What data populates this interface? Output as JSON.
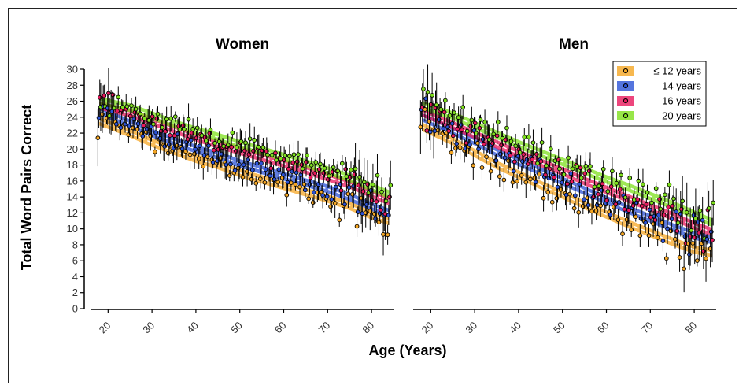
{
  "chart_data": {
    "type": "scatter",
    "ylabel": "Total Word Pairs Correct",
    "xlabel": "Age (Years)",
    "xlim": [
      16,
      85
    ],
    "ylim": [
      0,
      30
    ],
    "x_ticks": [
      20,
      30,
      40,
      50,
      60,
      70,
      80
    ],
    "y_ticks": [
      0,
      2,
      4,
      6,
      8,
      10,
      12,
      14,
      16,
      18,
      20,
      22,
      24,
      26,
      28,
      30
    ],
    "grid": false,
    "legend_position": "top-right of Men panel",
    "legend": [
      {
        "label": "≤ 12 years",
        "color": "#f5a623"
      },
      {
        "label": "14 years",
        "color": "#2b52d6"
      },
      {
        "label": "16 years",
        "color": "#e8185c"
      },
      {
        "label": "20 years",
        "color": "#7ee01c"
      }
    ],
    "panels": [
      {
        "title": "Women",
        "series": [
          {
            "name": "≤ 12 years",
            "color": "#f5a623",
            "x": [
              18,
              25,
              30,
              35,
              40,
              45,
              50,
              55,
              60,
              65,
              70,
              75,
              80,
              84
            ],
            "y": [
              23.5,
              22.0,
              20.8,
              19.8,
              18.8,
              18.0,
              17.0,
              16.2,
              15.4,
              14.6,
              13.8,
              12.9,
              11.7,
              11.0
            ]
          },
          {
            "name": "14 years",
            "color": "#2b52d6",
            "x": [
              18,
              25,
              30,
              35,
              40,
              45,
              50,
              55,
              60,
              65,
              70,
              75,
              80,
              84
            ],
            "y": [
              24.8,
              23.2,
              22.0,
              21.0,
              20.0,
              19.2,
              18.2,
              17.4,
              16.6,
              15.8,
              15.0,
              14.0,
              12.8,
              12.0
            ]
          },
          {
            "name": "16 years",
            "color": "#e8185c",
            "x": [
              18,
              25,
              30,
              35,
              40,
              45,
              50,
              55,
              60,
              65,
              70,
              75,
              80,
              84
            ],
            "y": [
              25.5,
              24.5,
              23.5,
              22.5,
              21.5,
              20.6,
              19.8,
              19.0,
              18.2,
              17.4,
              16.5,
              15.6,
              14.4,
              13.5
            ]
          },
          {
            "name": "20 years",
            "color": "#7ee01c",
            "x": [
              18,
              25,
              30,
              35,
              40,
              45,
              50,
              55,
              60,
              65,
              70,
              75,
              80,
              84
            ],
            "y": [
              26.0,
              25.2,
              24.2,
              23.2,
              22.3,
              21.5,
              20.6,
              19.8,
              19.0,
              18.2,
              17.3,
              16.4,
              15.2,
              14.3
            ]
          }
        ]
      },
      {
        "title": "Men",
        "series": [
          {
            "name": "≤ 12 years",
            "color": "#f5a623",
            "x": [
              18,
              25,
              30,
              35,
              40,
              45,
              50,
              55,
              60,
              65,
              70,
              75,
              80,
              84
            ],
            "y": [
              22.8,
              21.0,
              19.5,
              18.0,
              16.8,
              15.5,
              14.3,
              13.0,
              11.8,
              10.6,
              9.5,
              8.4,
              7.4,
              7.0
            ]
          },
          {
            "name": "14 years",
            "color": "#2b52d6",
            "x": [
              18,
              25,
              30,
              35,
              40,
              45,
              50,
              55,
              60,
              65,
              70,
              75,
              80,
              84
            ],
            "y": [
              24.0,
              22.3,
              21.0,
              19.6,
              18.4,
              17.2,
              16.0,
              14.8,
              13.6,
              12.4,
              11.3,
              10.2,
              9.2,
              8.6
            ]
          },
          {
            "name": "16 years",
            "color": "#e8185c",
            "x": [
              18,
              25,
              30,
              35,
              40,
              45,
              50,
              55,
              60,
              65,
              70,
              75,
              80,
              84
            ],
            "y": [
              24.6,
              23.0,
              21.8,
              20.6,
              19.4,
              18.3,
              17.2,
              16.0,
              14.9,
              13.8,
              12.7,
              11.6,
              10.4,
              9.6
            ]
          },
          {
            "name": "20 years",
            "color": "#7ee01c",
            "x": [
              18,
              25,
              30,
              35,
              40,
              45,
              50,
              55,
              60,
              65,
              70,
              75,
              80,
              84
            ],
            "y": [
              25.5,
              24.2,
              23.0,
              21.8,
              20.6,
              19.5,
              18.4,
              17.3,
              16.2,
              15.2,
              14.1,
              13.0,
              11.8,
              10.8
            ]
          }
        ]
      }
    ]
  }
}
